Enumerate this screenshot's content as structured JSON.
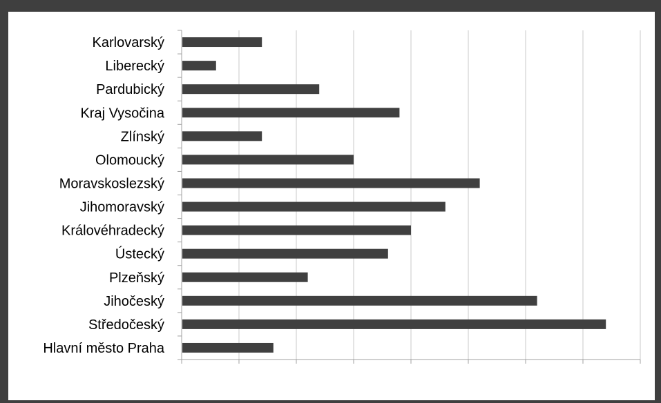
{
  "chart_data": {
    "type": "bar",
    "orientation": "horizontal",
    "title": "",
    "xlabel": "",
    "ylabel": "",
    "categories": [
      "Hlavní město Praha",
      "Středočeský",
      "Jihočeský",
      "Plzeňský",
      "Ústecký",
      "Královéhradecký",
      "Jihomoravský",
      "Moravskoslezský",
      "Olomoucký",
      "Zlínský",
      "Kraj Vysočina",
      "Pardubický",
      "Liberecký",
      "Karlovarský"
    ],
    "values": [
      8,
      37,
      31,
      11,
      18,
      20,
      23,
      26,
      15,
      7,
      19,
      12,
      3,
      7
    ],
    "xlim": [
      0,
      40
    ],
    "xticks": [
      "0",
      "5",
      "10",
      "15",
      "20",
      "25",
      "30",
      "35",
      "40"
    ],
    "grid": "vertical",
    "legend": "none",
    "colors": {
      "bar": "#404040",
      "background": "#3f3f3f",
      "plot": "#ffffff",
      "gridline": "#c8c8c8",
      "axis": "#a0a0a0"
    }
  }
}
